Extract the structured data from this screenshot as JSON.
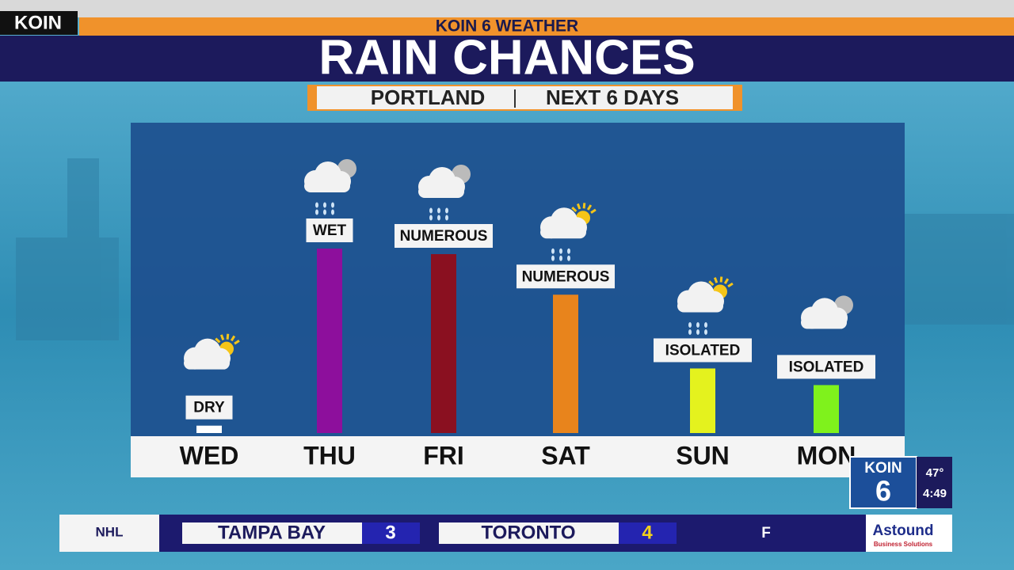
{
  "channel_tag": "KOIN",
  "header": {
    "kicker": "KOIN 6 WEATHER",
    "title": "RAIN CHANCES",
    "location": "PORTLAND",
    "period": "NEXT 6 DAYS"
  },
  "chart_data": {
    "type": "bar",
    "categories": [
      "WED",
      "THU",
      "FRI",
      "SAT",
      "SUN",
      "MON"
    ],
    "values": [
      4,
      100,
      97,
      75,
      35,
      26
    ],
    "descriptions": [
      "DRY",
      "WET",
      "NUMEROUS",
      "NUMEROUS",
      "ISOLATED",
      "ISOLATED"
    ],
    "colors": [
      "#ffffff",
      "#8d0f9c",
      "#8a1020",
      "#e8841c",
      "#e4f21e",
      "#7ff21c"
    ]
  },
  "station_bug": {
    "logo_text": "KOIN",
    "logo_number": "6",
    "temperature": "47°",
    "time": "4:49"
  },
  "ticker": {
    "league": "NHL",
    "team1": "TAMPA BAY",
    "score1": "3",
    "team2": "TORONTO",
    "score2": "4",
    "status": "F",
    "sponsor": "Astound",
    "sponsor_sub": "Business Solutions"
  }
}
